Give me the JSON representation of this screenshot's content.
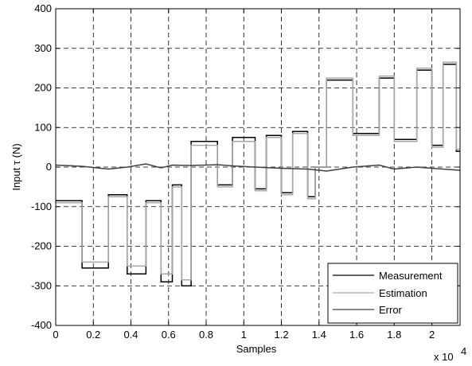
{
  "chart_data": {
    "type": "line",
    "title": "",
    "xlabel": "Samples",
    "ylabel": "Input τ (N)",
    "x_multiplier_label": "x 10",
    "x_multiplier_exp": "4",
    "xlim": [
      0,
      2.15
    ],
    "ylim": [
      -400,
      400
    ],
    "xticks": [
      0,
      0.2,
      0.4,
      0.6,
      0.8,
      1,
      1.2,
      1.4,
      1.6,
      1.8,
      2
    ],
    "xtick_labels": [
      "0",
      "0.2",
      "0.4",
      "0.6",
      "0.8",
      "1",
      "1.2",
      "1.4",
      "1.6",
      "1.8",
      "2"
    ],
    "yticks": [
      -400,
      -300,
      -200,
      -100,
      0,
      100,
      200,
      300,
      400
    ],
    "ytick_labels": [
      "-400",
      "-300",
      "-200",
      "-100",
      "0",
      "100",
      "200",
      "300",
      "400"
    ],
    "grid": true,
    "legend_position": "bottom-right",
    "series": [
      {
        "name": "Measurement",
        "color": "#000000",
        "x": [
          0,
          0.14,
          0.14,
          0.28,
          0.28,
          0.38,
          0.38,
          0.48,
          0.48,
          0.56,
          0.56,
          0.62,
          0.62,
          0.67,
          0.67,
          0.72,
          0.72,
          0.86,
          0.86,
          0.94,
          0.94,
          1.06,
          1.06,
          1.12,
          1.12,
          1.2,
          1.2,
          1.26,
          1.26,
          1.34,
          1.34,
          1.38,
          1.38,
          1.44,
          1.44,
          1.58,
          1.58,
          1.72,
          1.72,
          1.8,
          1.8,
          1.92,
          1.92,
          2.0,
          2.0,
          2.06,
          2.06,
          2.13,
          2.13,
          2.15
        ],
        "y": [
          -85,
          -85,
          -255,
          -255,
          -70,
          -70,
          -270,
          -270,
          -85,
          -85,
          -290,
          -290,
          -45,
          -45,
          -300,
          -300,
          65,
          65,
          -45,
          -45,
          75,
          75,
          -55,
          -55,
          80,
          80,
          -65,
          -65,
          90,
          90,
          -75,
          -75,
          0,
          0,
          220,
          220,
          85,
          85,
          225,
          225,
          70,
          70,
          245,
          245,
          55,
          55,
          260,
          260,
          40,
          40
        ]
      },
      {
        "name": "Estimation",
        "color": "#a6a6a6",
        "x": [
          0,
          0.14,
          0.14,
          0.28,
          0.28,
          0.38,
          0.38,
          0.48,
          0.48,
          0.56,
          0.56,
          0.62,
          0.62,
          0.67,
          0.67,
          0.72,
          0.72,
          0.86,
          0.86,
          0.94,
          0.94,
          1.06,
          1.06,
          1.12,
          1.12,
          1.2,
          1.2,
          1.26,
          1.26,
          1.34,
          1.34,
          1.38,
          1.38,
          1.44,
          1.44,
          1.58,
          1.58,
          1.72,
          1.72,
          1.8,
          1.8,
          1.92,
          1.92,
          2.0,
          2.0,
          2.06,
          2.06,
          2.13,
          2.13,
          2.15
        ],
        "y": [
          -90,
          -90,
          -240,
          -240,
          -75,
          -75,
          -250,
          -250,
          -90,
          -90,
          -270,
          -270,
          -50,
          -50,
          -285,
          -285,
          55,
          55,
          -50,
          -50,
          65,
          65,
          -60,
          -60,
          75,
          75,
          -70,
          -70,
          85,
          85,
          -80,
          -80,
          0,
          0,
          225,
          225,
          80,
          80,
          230,
          230,
          65,
          65,
          250,
          250,
          50,
          50,
          265,
          265,
          45,
          45
        ]
      },
      {
        "name": "Error",
        "color": "#404040",
        "x": [
          0,
          0.14,
          0.28,
          0.38,
          0.48,
          0.56,
          0.62,
          0.72,
          0.86,
          0.94,
          1.06,
          1.2,
          1.34,
          1.44,
          1.58,
          1.72,
          1.8,
          1.92,
          2.0,
          2.06,
          2.15
        ],
        "y": [
          5,
          2,
          -5,
          0,
          8,
          -2,
          5,
          4,
          6,
          3,
          0,
          -3,
          -5,
          -10,
          0,
          5,
          -5,
          0,
          -3,
          -5,
          -8
        ]
      }
    ]
  }
}
